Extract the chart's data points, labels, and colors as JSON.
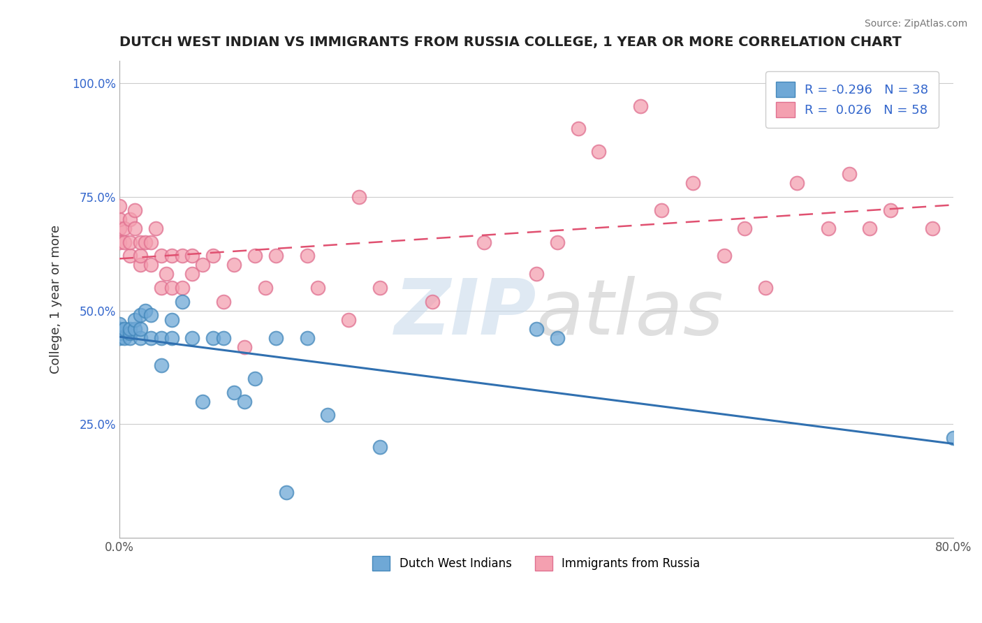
{
  "title": "DUTCH WEST INDIAN VS IMMIGRANTS FROM RUSSIA COLLEGE, 1 YEAR OR MORE CORRELATION CHART",
  "source": "Source: ZipAtlas.com",
  "ylabel": "College, 1 year or more",
  "xlim": [
    0.0,
    0.8
  ],
  "ylim": [
    0.0,
    1.05
  ],
  "x_tick_labels": [
    "0.0%",
    "",
    "",
    "",
    "80.0%"
  ],
  "y_tick_labels": [
    "",
    "25.0%",
    "50.0%",
    "75.0%",
    "100.0%"
  ],
  "legend_labels": [
    "Dutch West Indians",
    "Immigrants from Russia"
  ],
  "legend_r_blue": "R = -0.296",
  "legend_n_blue": "N = 38",
  "legend_r_pink": "R =  0.026",
  "legend_n_pink": "N = 58",
  "color_blue": "#6fa8d6",
  "color_blue_line": "#3070b0",
  "color_pink": "#f4a0b0",
  "color_pink_line": "#e05070",
  "color_pink_dark": "#e07090",
  "color_blue_dark": "#4488bb",
  "blue_x": [
    0.0,
    0.0,
    0.0,
    0.0,
    0.0,
    0.005,
    0.005,
    0.01,
    0.01,
    0.01,
    0.015,
    0.015,
    0.02,
    0.02,
    0.02,
    0.025,
    0.03,
    0.03,
    0.04,
    0.04,
    0.05,
    0.05,
    0.06,
    0.07,
    0.08,
    0.09,
    0.1,
    0.11,
    0.12,
    0.13,
    0.15,
    0.16,
    0.18,
    0.2,
    0.25,
    0.4,
    0.42,
    0.8
  ],
  "blue_y": [
    0.44,
    0.45,
    0.46,
    0.46,
    0.47,
    0.44,
    0.46,
    0.44,
    0.45,
    0.46,
    0.46,
    0.48,
    0.44,
    0.46,
    0.49,
    0.5,
    0.44,
    0.49,
    0.38,
    0.44,
    0.44,
    0.48,
    0.52,
    0.44,
    0.3,
    0.44,
    0.44,
    0.32,
    0.3,
    0.35,
    0.44,
    0.1,
    0.44,
    0.27,
    0.2,
    0.46,
    0.44,
    0.22
  ],
  "pink_x": [
    0.0,
    0.0,
    0.0,
    0.0,
    0.005,
    0.005,
    0.01,
    0.01,
    0.01,
    0.015,
    0.015,
    0.02,
    0.02,
    0.02,
    0.025,
    0.03,
    0.03,
    0.035,
    0.04,
    0.04,
    0.045,
    0.05,
    0.05,
    0.06,
    0.06,
    0.07,
    0.07,
    0.08,
    0.09,
    0.1,
    0.11,
    0.12,
    0.13,
    0.14,
    0.15,
    0.18,
    0.19,
    0.22,
    0.23,
    0.25,
    0.3,
    0.35,
    0.4,
    0.42,
    0.44,
    0.46,
    0.5,
    0.52,
    0.55,
    0.58,
    0.6,
    0.62,
    0.65,
    0.68,
    0.7,
    0.72,
    0.74,
    0.78
  ],
  "pink_y": [
    0.65,
    0.68,
    0.7,
    0.73,
    0.65,
    0.68,
    0.62,
    0.65,
    0.7,
    0.68,
    0.72,
    0.6,
    0.62,
    0.65,
    0.65,
    0.6,
    0.65,
    0.68,
    0.55,
    0.62,
    0.58,
    0.55,
    0.62,
    0.55,
    0.62,
    0.58,
    0.62,
    0.6,
    0.62,
    0.52,
    0.6,
    0.42,
    0.62,
    0.55,
    0.62,
    0.62,
    0.55,
    0.48,
    0.75,
    0.55,
    0.52,
    0.65,
    0.58,
    0.65,
    0.9,
    0.85,
    0.95,
    0.72,
    0.78,
    0.62,
    0.68,
    0.55,
    0.78,
    0.68,
    0.8,
    0.68,
    0.72,
    0.68
  ],
  "bg_color": "#ffffff",
  "grid_color": "#cccccc"
}
